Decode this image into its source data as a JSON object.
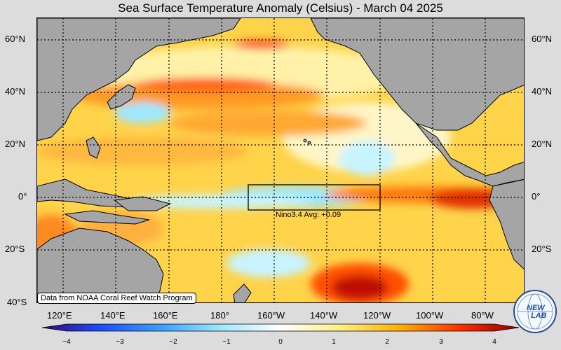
{
  "title": "Sea Surface Temperature Anomaly (Celsius) - March 04 2025",
  "lat_labels": [
    "60°N",
    "40°N",
    "20°N",
    "0°",
    "20°S",
    "40°S"
  ],
  "lon_labels": [
    "120°E",
    "140°E",
    "160°E",
    "180°",
    "160°W",
    "140°W",
    "120°W",
    "100°W",
    "80°W"
  ],
  "colorbar": {
    "ticks": [
      "−4",
      "−3",
      "−2",
      "−1",
      "0",
      "1",
      "2",
      "3",
      "4"
    ],
    "colors": [
      "#2a0a7a",
      "#1e4fff",
      "#3aa0ff",
      "#9ee8ff",
      "#ffffff",
      "#ffef80",
      "#ffb000",
      "#ff3000",
      "#8a0000"
    ]
  },
  "nino_box": {
    "label": "Nino3.4 Avg: +0.09"
  },
  "credit": "Data from NOAA Coral Reef Watch Program",
  "logo_text": {
    "top": "NEW",
    "bottom": "LAB"
  },
  "colors": {
    "land": "#a5a5a5",
    "ocean_warm": "#ffcc33",
    "ocean_cool": "#9ee8ff",
    "background": "#dcdcdc"
  }
}
